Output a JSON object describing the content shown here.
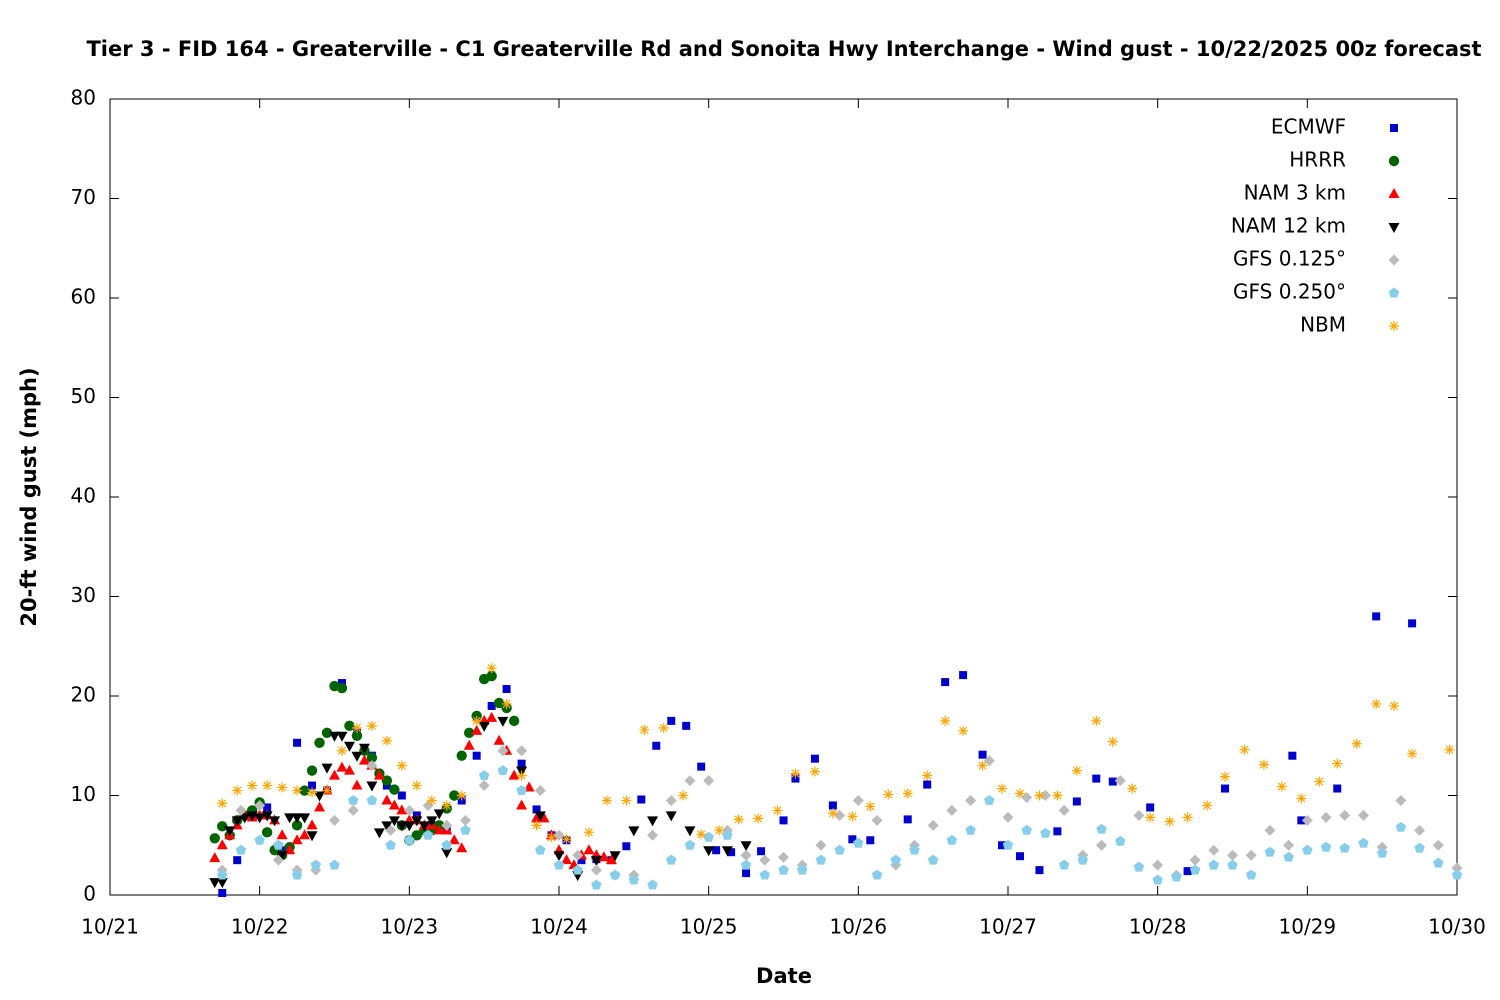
{
  "chart_data": {
    "type": "scatter",
    "title": "Tier 3 - FID 164 - Greaterville - C1 Greaterville Rd and Sonoita Hwy Interchange - Wind gust - 10/22/2025 00z forecast",
    "x_label": "Date",
    "y_label": "20-ft wind gust (mph)",
    "xlim": [
      0,
      9
    ],
    "ylim": [
      0,
      80
    ],
    "xticks": [
      {
        "value": 0,
        "label": "10/21"
      },
      {
        "value": 1,
        "label": "10/22"
      },
      {
        "value": 2,
        "label": "10/23"
      },
      {
        "value": 3,
        "label": "10/24"
      },
      {
        "value": 4,
        "label": "10/25"
      },
      {
        "value": 5,
        "label": "10/26"
      },
      {
        "value": 6,
        "label": "10/27"
      },
      {
        "value": 7,
        "label": "10/28"
      },
      {
        "value": 8,
        "label": "10/29"
      },
      {
        "value": 9,
        "label": "10/30"
      }
    ],
    "yticks": [
      0,
      10,
      20,
      30,
      40,
      50,
      60,
      70,
      80
    ],
    "grid": false,
    "legend": "top-right",
    "series": [
      {
        "name": "ECMWF",
        "color": "#0000cc",
        "marker": "square",
        "x": [
          0.75,
          0.85,
          0.95,
          1.05,
          1.15,
          1.25,
          1.35,
          1.45,
          1.55,
          1.65,
          1.75,
          1.85,
          1.95,
          2.05,
          2.15,
          2.25,
          2.35,
          2.45,
          2.55,
          2.65,
          2.75,
          2.85,
          2.95,
          3.05,
          3.15,
          3.25,
          3.35,
          3.45,
          3.55,
          3.65,
          3.75,
          3.85,
          3.95,
          4.05,
          4.15,
          4.25,
          4.35,
          4.5,
          4.58,
          4.71,
          4.83,
          4.96,
          5.08,
          5.33,
          5.46,
          5.58,
          5.7,
          5.83,
          5.96,
          6.08,
          6.21,
          6.33,
          6.46,
          6.59,
          6.7,
          6.95,
          7.2,
          7.45,
          7.9,
          7.96,
          8.2,
          8.46,
          8.7
        ],
        "values": [
          0.2,
          3.5,
          7.8,
          8.8,
          4.5,
          15.3,
          11.0,
          10.5,
          21.3,
          16.3,
          14.0,
          11.0,
          10.0,
          8.0,
          7.0,
          6.5,
          9.5,
          14.0,
          19.0,
          20.7,
          13.2,
          8.6,
          6.0,
          5.5,
          3.5,
          3.6,
          3.5,
          4.9,
          9.6,
          15.0,
          17.5,
          17.0,
          12.9,
          4.5,
          4.3,
          2.2,
          4.4,
          7.5,
          11.7,
          13.7,
          9.0,
          5.6,
          5.5,
          7.6,
          11.1,
          21.4,
          22.1,
          14.1,
          5.0,
          3.9,
          2.5,
          6.4,
          9.4,
          11.7,
          11.4,
          8.8,
          2.4,
          10.7,
          14.0,
          7.5,
          10.7,
          28.0,
          27.3
        ]
      },
      {
        "name": "HRRR",
        "color": "#006400",
        "marker": "circle",
        "x": [
          0.7,
          0.75,
          0.8,
          0.85,
          0.9,
          0.95,
          1.0,
          1.05,
          1.1,
          1.15,
          1.2,
          1.25,
          1.3,
          1.35,
          1.4,
          1.45,
          1.5,
          1.55,
          1.6,
          1.65,
          1.7,
          1.75,
          1.8,
          1.85,
          1.9,
          1.95,
          2.0,
          2.05,
          2.1,
          2.15,
          2.2,
          2.25,
          2.3,
          2.35,
          2.4,
          2.45,
          2.5,
          2.55,
          2.6,
          2.65,
          2.7
        ],
        "values": [
          5.7,
          6.9,
          6.0,
          7.5,
          8.0,
          8.5,
          9.3,
          6.3,
          4.5,
          4.0,
          4.8,
          7.0,
          10.5,
          12.5,
          15.3,
          16.3,
          21.0,
          20.8,
          17.0,
          16.0,
          14.5,
          13.8,
          12.2,
          11.5,
          10.6,
          7.0,
          5.5,
          6.0,
          6.5,
          6.5,
          7.0,
          8.7,
          10.0,
          14.0,
          16.3,
          18.0,
          21.7,
          22.0,
          19.3,
          18.8,
          17.5
        ]
      },
      {
        "name": "NAM 3 km",
        "color": "#ff0000",
        "marker": "triangle-up",
        "x": [
          0.7,
          0.75,
          0.8,
          0.85,
          0.9,
          0.95,
          1.0,
          1.05,
          1.1,
          1.15,
          1.2,
          1.25,
          1.3,
          1.35,
          1.4,
          1.45,
          1.5,
          1.55,
          1.6,
          1.65,
          1.7,
          1.75,
          1.8,
          1.85,
          1.9,
          1.95,
          2.0,
          2.05,
          2.1,
          2.15,
          2.2,
          2.25,
          2.3,
          2.35,
          2.4,
          2.45,
          2.5,
          2.55,
          2.6,
          2.65,
          2.7,
          2.75,
          2.8,
          2.85,
          2.9,
          2.95,
          3.0,
          3.05,
          3.1,
          3.15,
          3.2,
          3.25,
          3.3,
          3.35
        ],
        "values": [
          3.7,
          5.0,
          6.0,
          7.0,
          8.0,
          7.8,
          8.0,
          8.0,
          7.5,
          6.0,
          4.5,
          5.5,
          6.0,
          7.0,
          8.8,
          10.5,
          12.0,
          12.8,
          12.5,
          11.0,
          13.5,
          13.0,
          12.0,
          9.5,
          9.0,
          8.5,
          7.5,
          7.5,
          7.0,
          7.0,
          6.5,
          6.5,
          5.5,
          4.7,
          15.0,
          16.5,
          17.5,
          17.8,
          15.5,
          14.5,
          12.0,
          9.0,
          10.8,
          7.7,
          7.7,
          6.0,
          4.5,
          3.5,
          3.0,
          4.0,
          4.5,
          4.0,
          3.8,
          3.5
        ]
      },
      {
        "name": "NAM 12 km",
        "color": "#000000",
        "marker": "triangle-down",
        "x": [
          0.7,
          0.75,
          0.8,
          0.85,
          0.9,
          0.95,
          1.0,
          1.05,
          1.1,
          1.15,
          1.2,
          1.25,
          1.3,
          1.35,
          1.4,
          1.45,
          1.5,
          1.55,
          1.6,
          1.65,
          1.7,
          1.75,
          1.8,
          1.85,
          1.9,
          1.95,
          2.0,
          2.05,
          2.1,
          2.15,
          2.2,
          2.25,
          2.5,
          2.625,
          2.75,
          2.875,
          3.0,
          3.125,
          3.25,
          3.375,
          3.5,
          3.625,
          3.75,
          3.875,
          4.0,
          4.125,
          4.25
        ],
        "values": [
          1.3,
          1.3,
          6.5,
          7.5,
          7.8,
          8.0,
          7.8,
          8.0,
          7.5,
          4.0,
          7.8,
          7.8,
          7.8,
          6.0,
          10.0,
          12.8,
          16.0,
          16.0,
          15.0,
          14.0,
          14.8,
          11.0,
          6.3,
          7.0,
          7.5,
          7.0,
          7.0,
          7.5,
          7.0,
          7.5,
          8.2,
          4.3,
          17.0,
          17.5,
          12.5,
          8.0,
          4.0,
          2.0,
          3.5,
          4.0,
          6.5,
          7.5,
          8.0,
          6.5,
          4.5,
          4.5,
          5.0
        ]
      },
      {
        "name": "GFS 0.125°",
        "color": "#bbbbbb",
        "marker": "diamond",
        "x": [
          0.75,
          0.875,
          1,
          1.125,
          1.25,
          1.375,
          1.5,
          1.625,
          1.75,
          1.875,
          2,
          2.125,
          2.25,
          2.375,
          2.5,
          2.625,
          2.75,
          2.875,
          3,
          3.125,
          3.25,
          3.375,
          3.5,
          3.625,
          3.75,
          3.875,
          4,
          4.125,
          4.25,
          4.375,
          4.5,
          4.625,
          4.75,
          4.875,
          5,
          5.125,
          5.25,
          5.375,
          5.5,
          5.625,
          5.75,
          5.875,
          6,
          6.125,
          6.25,
          6.375,
          6.5,
          6.625,
          6.75,
          6.875,
          7,
          7.125,
          7.25,
          7.375,
          7.5,
          7.625,
          7.75,
          7.875,
          8,
          8.125,
          8.25,
          8.375,
          8.5,
          8.625,
          8.75,
          8.875,
          9
        ],
        "values": [
          2.5,
          8.5,
          9.0,
          3.5,
          2.5,
          2.5,
          7.5,
          8.5,
          13.0,
          6.5,
          8.5,
          9.0,
          7.0,
          7.5,
          11.0,
          14.5,
          14.5,
          10.5,
          6.0,
          4.0,
          2.5,
          2.0,
          2.0,
          6.0,
          9.5,
          11.5,
          11.5,
          6.5,
          4.0,
          3.5,
          3.8,
          3.0,
          5.0,
          8.0,
          9.5,
          7.5,
          3.0,
          5.0,
          7.0,
          8.5,
          9.5,
          13.5,
          7.8,
          9.8,
          10.0,
          8.5,
          4.0,
          5.0,
          11.5,
          8.0,
          3.0,
          2.0,
          3.5,
          4.5,
          4.0,
          4.0,
          6.5,
          5.0,
          7.5,
          7.8,
          8.0,
          8.0,
          4.8,
          9.5,
          6.5,
          5.0,
          2.7
        ]
      },
      {
        "name": "GFS 0.250°",
        "color": "#87ceeb",
        "marker": "pentagon",
        "x": [
          0.75,
          0.875,
          1,
          1.125,
          1.25,
          1.375,
          1.5,
          1.625,
          1.75,
          1.875,
          2,
          2.125,
          2.25,
          2.375,
          2.5,
          2.625,
          2.75,
          2.875,
          3,
          3.125,
          3.25,
          3.375,
          3.5,
          3.625,
          3.75,
          3.875,
          4,
          4.125,
          4.25,
          4.375,
          4.5,
          4.625,
          4.75,
          4.875,
          5,
          5.125,
          5.25,
          5.375,
          5.5,
          5.625,
          5.75,
          5.875,
          6,
          6.125,
          6.25,
          6.375,
          6.5,
          6.625,
          6.75,
          6.875,
          7,
          7.125,
          7.25,
          7.375,
          7.5,
          7.625,
          7.75,
          7.875,
          8,
          8.125,
          8.25,
          8.375,
          8.5,
          8.625,
          8.75,
          8.875,
          9
        ],
        "values": [
          2.0,
          4.5,
          5.5,
          5.0,
          2.0,
          3.0,
          3.0,
          9.5,
          9.5,
          5.0,
          5.5,
          6.0,
          5.0,
          6.5,
          12.0,
          12.5,
          10.5,
          4.5,
          3.0,
          2.5,
          1.0,
          2.0,
          1.5,
          1.0,
          3.5,
          5.0,
          5.8,
          6.0,
          3.0,
          2.0,
          2.5,
          2.5,
          3.5,
          4.5,
          5.2,
          2.0,
          3.5,
          4.5,
          3.5,
          5.5,
          6.5,
          9.5,
          5.0,
          6.5,
          6.2,
          3.0,
          3.5,
          6.6,
          5.4,
          2.8,
          1.5,
          1.8,
          2.5,
          3.0,
          3.0,
          2.0,
          4.3,
          3.8,
          4.5,
          4.8,
          4.7,
          5.2,
          4.2,
          6.8,
          4.7,
          3.2,
          2.0
        ]
      },
      {
        "name": "NBM",
        "color": "#ffa500",
        "marker": "asterisk",
        "x": [
          0.75,
          0.85,
          0.95,
          1.05,
          1.15,
          1.25,
          1.35,
          1.45,
          1.55,
          1.65,
          1.75,
          1.85,
          1.95,
          2.05,
          2.15,
          2.25,
          2.35,
          2.45,
          2.55,
          2.65,
          2.75,
          2.85,
          2.95,
          3.05,
          3.2,
          3.32,
          3.45,
          3.57,
          3.7,
          3.83,
          3.95,
          4.07,
          4.2,
          4.33,
          4.46,
          4.58,
          4.71,
          4.83,
          4.96,
          5.08,
          5.2,
          5.33,
          5.46,
          5.58,
          5.7,
          5.83,
          5.96,
          6.08,
          6.21,
          6.33,
          6.46,
          6.59,
          6.7,
          6.83,
          6.95,
          7.08,
          7.2,
          7.33,
          7.45,
          7.58,
          7.71,
          7.83,
          7.96,
          8.08,
          8.2,
          8.33,
          8.46,
          8.58,
          8.7,
          8.95
        ],
        "values": [
          9.2,
          10.5,
          11.0,
          11.0,
          10.8,
          10.5,
          10.3,
          10.5,
          14.5,
          16.8,
          17.0,
          15.5,
          13.0,
          11.0,
          9.5,
          9.0,
          10.0,
          17.5,
          22.8,
          19.2,
          12.0,
          7.0,
          5.8,
          5.6,
          6.3,
          9.5,
          9.5,
          16.6,
          16.8,
          10.0,
          6.1,
          6.5,
          7.6,
          7.7,
          8.5,
          12.2,
          12.4,
          8.2,
          7.9,
          8.9,
          10.1,
          10.2,
          12.0,
          17.5,
          16.5,
          13.0,
          10.7,
          10.2,
          10.0,
          10.0,
          12.5,
          17.5,
          15.4,
          10.7,
          7.8,
          7.4,
          7.8,
          9.0,
          11.9,
          14.6,
          13.1,
          10.9,
          9.7,
          11.4,
          13.2,
          15.2,
          19.2,
          19.0,
          14.2,
          14.6
        ]
      }
    ]
  }
}
